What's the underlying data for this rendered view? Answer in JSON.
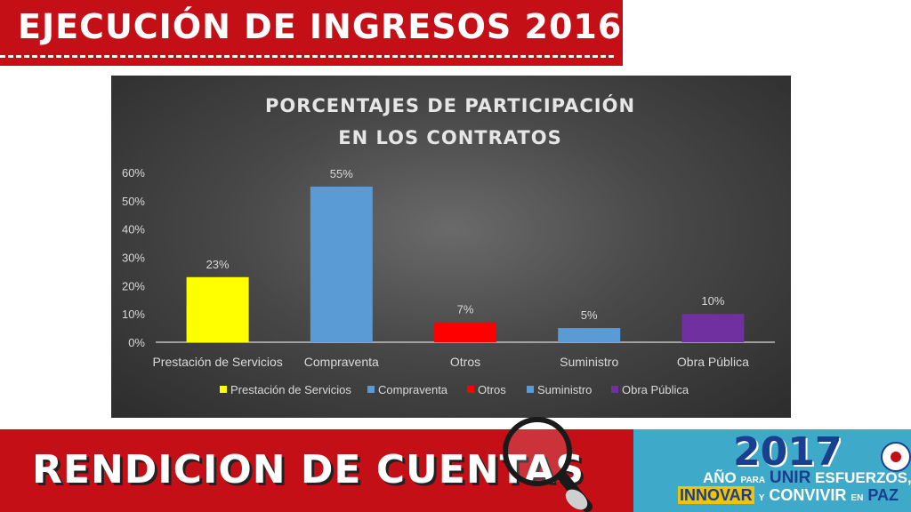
{
  "header": {
    "title": "EJECUCIÓN DE INGRESOS 2016"
  },
  "footer": {
    "title": "RENDICION DE CUENTAS",
    "banner": {
      "year": "2017",
      "line1_a": "AÑO",
      "line1_b": "PARA",
      "line1_c": "UNIR",
      "line1_d": "ESFUERZOS,",
      "line2_a": "INNOVAR",
      "line2_b": "Y",
      "line2_c": "CONVIVIR",
      "line2_d": "EN",
      "line2_e": "PAZ"
    }
  },
  "chart_data": {
    "type": "bar",
    "title_line1": "PORCENTAJES DE PARTICIPACIÓN",
    "title_line2": "EN LOS CONTRATOS",
    "categories": [
      "Prestación de Servicios",
      "Compraventa",
      "Otros",
      "Suministro",
      "Obra Pública"
    ],
    "values": [
      23,
      55,
      7,
      5,
      10
    ],
    "data_labels": [
      "23%",
      "55%",
      "7%",
      "5%",
      "10%"
    ],
    "colors": [
      "#ffff00",
      "#5b9bd5",
      "#ff0000",
      "#5b9bd5",
      "#7030a0"
    ],
    "yticks": [
      "0%",
      "10%",
      "20%",
      "30%",
      "40%",
      "50%",
      "60%"
    ],
    "ylim": [
      0,
      60
    ],
    "grid": false,
    "legend_position": "bottom",
    "legend": [
      "Prestación de Servicios",
      "Compraventa",
      "Otros",
      "Suministro",
      "Obra Pública"
    ]
  }
}
